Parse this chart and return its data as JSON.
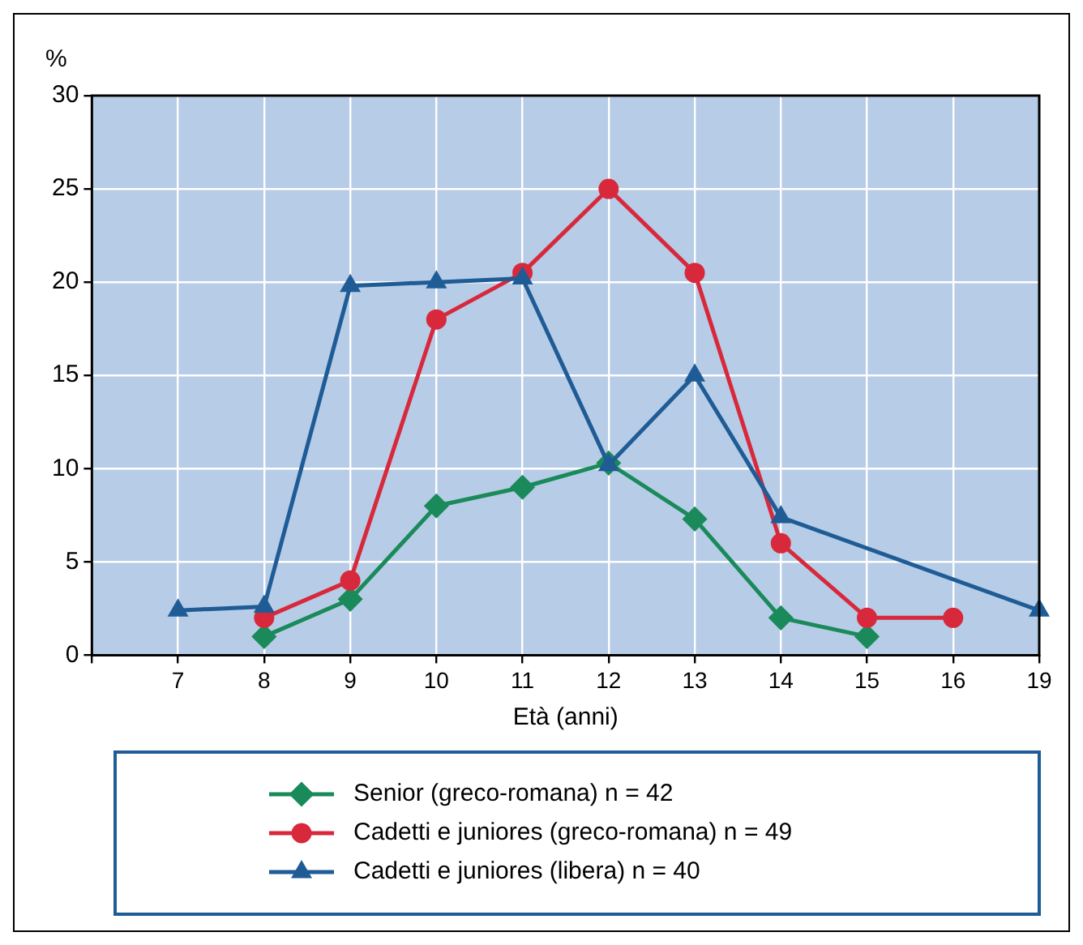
{
  "chart_data": {
    "type": "line",
    "ylabel": "%",
    "xlabel": "Età (anni)",
    "categories": [
      null,
      "7",
      "8",
      "9",
      "10",
      "11",
      "12",
      "13",
      "14",
      "15",
      "16",
      "19"
    ],
    "ylim": [
      0,
      30
    ],
    "yticks": [
      0,
      5,
      10,
      15,
      20,
      25,
      30
    ],
    "grid": true,
    "legend": "bottom",
    "series": [
      {
        "name": "Senior (greco-romana) n = 42",
        "color": "#1a8a5a",
        "marker": "diamond",
        "values": [
          null,
          null,
          1,
          3,
          8,
          9,
          10.3,
          7.3,
          2,
          1,
          null,
          null
        ]
      },
      {
        "name": "Cadetti e juniores (greco-romana) n = 49",
        "color": "#d8283c",
        "marker": "circle",
        "values": [
          null,
          null,
          2,
          4,
          18,
          20.5,
          25,
          20.5,
          6,
          2,
          2,
          null
        ]
      },
      {
        "name": "Cadetti e juniores (libera) n = 40",
        "color": "#1f5c96",
        "marker": "triangle",
        "values": [
          null,
          2.4,
          2.6,
          19.8,
          20,
          20.2,
          10.2,
          15,
          7.4,
          null,
          null,
          2.4
        ]
      }
    ]
  }
}
